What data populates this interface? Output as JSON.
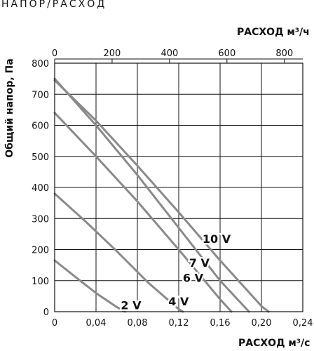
{
  "header": {
    "title": "НАПОР/РАСХОД"
  },
  "chart_data": {
    "type": "line",
    "title": "НАПОР/РАСХОД",
    "ylabel": "Общий напор, Па",
    "xlabel_bottom": "РАСХОД м³/с",
    "xlabel_top": "РАСХОД м³/ч",
    "ylim": [
      0,
      800
    ],
    "xlim_bottom": [
      0,
      0.24
    ],
    "xlim_top": [
      0,
      864
    ],
    "y_ticks": [
      "0",
      "100",
      "200",
      "300",
      "400",
      "500",
      "600",
      "700",
      "800"
    ],
    "x_ticks_bottom": [
      "0",
      "0,04",
      "0,08",
      "0,12",
      "0,16",
      "0,20",
      "0,24"
    ],
    "x_ticks_top": [
      "0",
      "200",
      "400",
      "600",
      "800"
    ],
    "grid": true,
    "colors": {
      "curve": "#8a8a8a",
      "grid": "#111111"
    },
    "series": [
      {
        "name": "2 V",
        "x": [
          0,
          0.02,
          0.04,
          0.06,
          0.068
        ],
        "y": [
          165,
          112,
          60,
          15,
          0
        ]
      },
      {
        "name": "4 V",
        "x": [
          0,
          0.03,
          0.06,
          0.09,
          0.12,
          0.124
        ],
        "y": [
          380,
          290,
          195,
          95,
          8,
          0
        ]
      },
      {
        "name": "6 V",
        "x": [
          0,
          0.04,
          0.08,
          0.12,
          0.16,
          0.171
        ],
        "y": [
          640,
          500,
          355,
          200,
          40,
          0
        ]
      },
      {
        "name": "7 V",
        "x": [
          0,
          0.04,
          0.08,
          0.12,
          0.16,
          0.188
        ],
        "y": [
          750,
          600,
          440,
          270,
          100,
          0
        ]
      },
      {
        "name": "10 V",
        "x": [
          0,
          0.04,
          0.08,
          0.12,
          0.16,
          0.2,
          0.207
        ],
        "y": [
          745,
          615,
          470,
          320,
          165,
          18,
          0
        ]
      }
    ]
  }
}
